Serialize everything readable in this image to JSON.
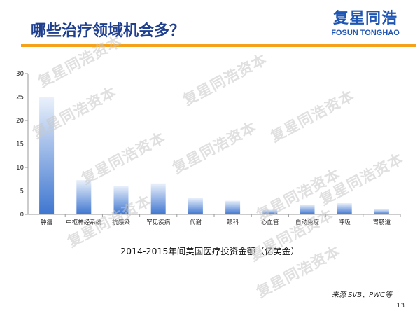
{
  "slide": {
    "title": "哪些治疗领域机会多？",
    "caption": "2014-2015年间美国医疗投资金额（亿美金）",
    "source": "来源 SVB、PWC等",
    "page_number": "13"
  },
  "logo": {
    "cn": "复星同浩",
    "en": "FOSUN TONGHAO"
  },
  "watermark": {
    "text": "复星同浩资本"
  },
  "colors": {
    "title": "#1f3f8f",
    "accent": "#f5a21a",
    "bar_top": "#eaf1fb",
    "bar_bottom": "#3f76d0"
  },
  "chart_data": {
    "type": "bar",
    "title": "",
    "xlabel": "",
    "ylabel": "",
    "categories": [
      "肿瘤",
      "中枢神经系统",
      "抗感染",
      "罕见疾病",
      "代谢",
      "眼科",
      "心血管",
      "自动免疫",
      "呼吸",
      "胃肠道"
    ],
    "values": [
      25,
      7.3,
      6.1,
      6.6,
      3.5,
      2.9,
      1.0,
      2.1,
      2.4,
      1.1
    ],
    "ylim": [
      0,
      30
    ],
    "yticks": [
      0,
      5,
      10,
      15,
      20,
      25,
      30
    ],
    "grid": false,
    "legend": "none"
  }
}
